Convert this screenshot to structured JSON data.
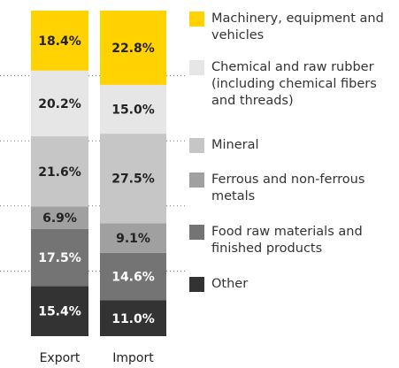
{
  "chart_data": {
    "type": "stacked_bar",
    "categories": [
      "Export",
      "Import"
    ],
    "series": [
      {
        "name": "Machinery, equipment and vehicles",
        "color": "#ffd200",
        "values": [
          18.4,
          22.8
        ],
        "value_labels": [
          "18.4%",
          "22.8%"
        ]
      },
      {
        "name": "Chemical and raw rubber (including chemical fibers and threads)",
        "color": "#e6e6e6",
        "values": [
          20.2,
          15.0
        ],
        "value_labels": [
          "20.2%",
          "15.0%"
        ]
      },
      {
        "name": "Mineral",
        "color": "#c6c6c6",
        "values": [
          21.6,
          27.5
        ],
        "value_labels": [
          "21.6%",
          "27.5%"
        ]
      },
      {
        "name": "Ferrous and non-ferrous metals",
        "color": "#a0a0a0",
        "values": [
          6.9,
          9.1
        ],
        "value_labels": [
          "6.9%",
          "9.1%"
        ]
      },
      {
        "name": "Food raw materials and finished products",
        "color": "#747474",
        "values": [
          17.5,
          14.6
        ],
        "value_labels": [
          "17.5%",
          "14.6%"
        ]
      },
      {
        "name": "Other",
        "color": "#333333",
        "values": [
          15.4,
          11.0
        ],
        "value_labels": [
          "15.4%",
          "11.0%"
        ]
      }
    ],
    "ylim": [
      0,
      100
    ],
    "yticks": [
      20,
      40,
      60,
      80
    ],
    "grid": true,
    "legend": "right"
  }
}
